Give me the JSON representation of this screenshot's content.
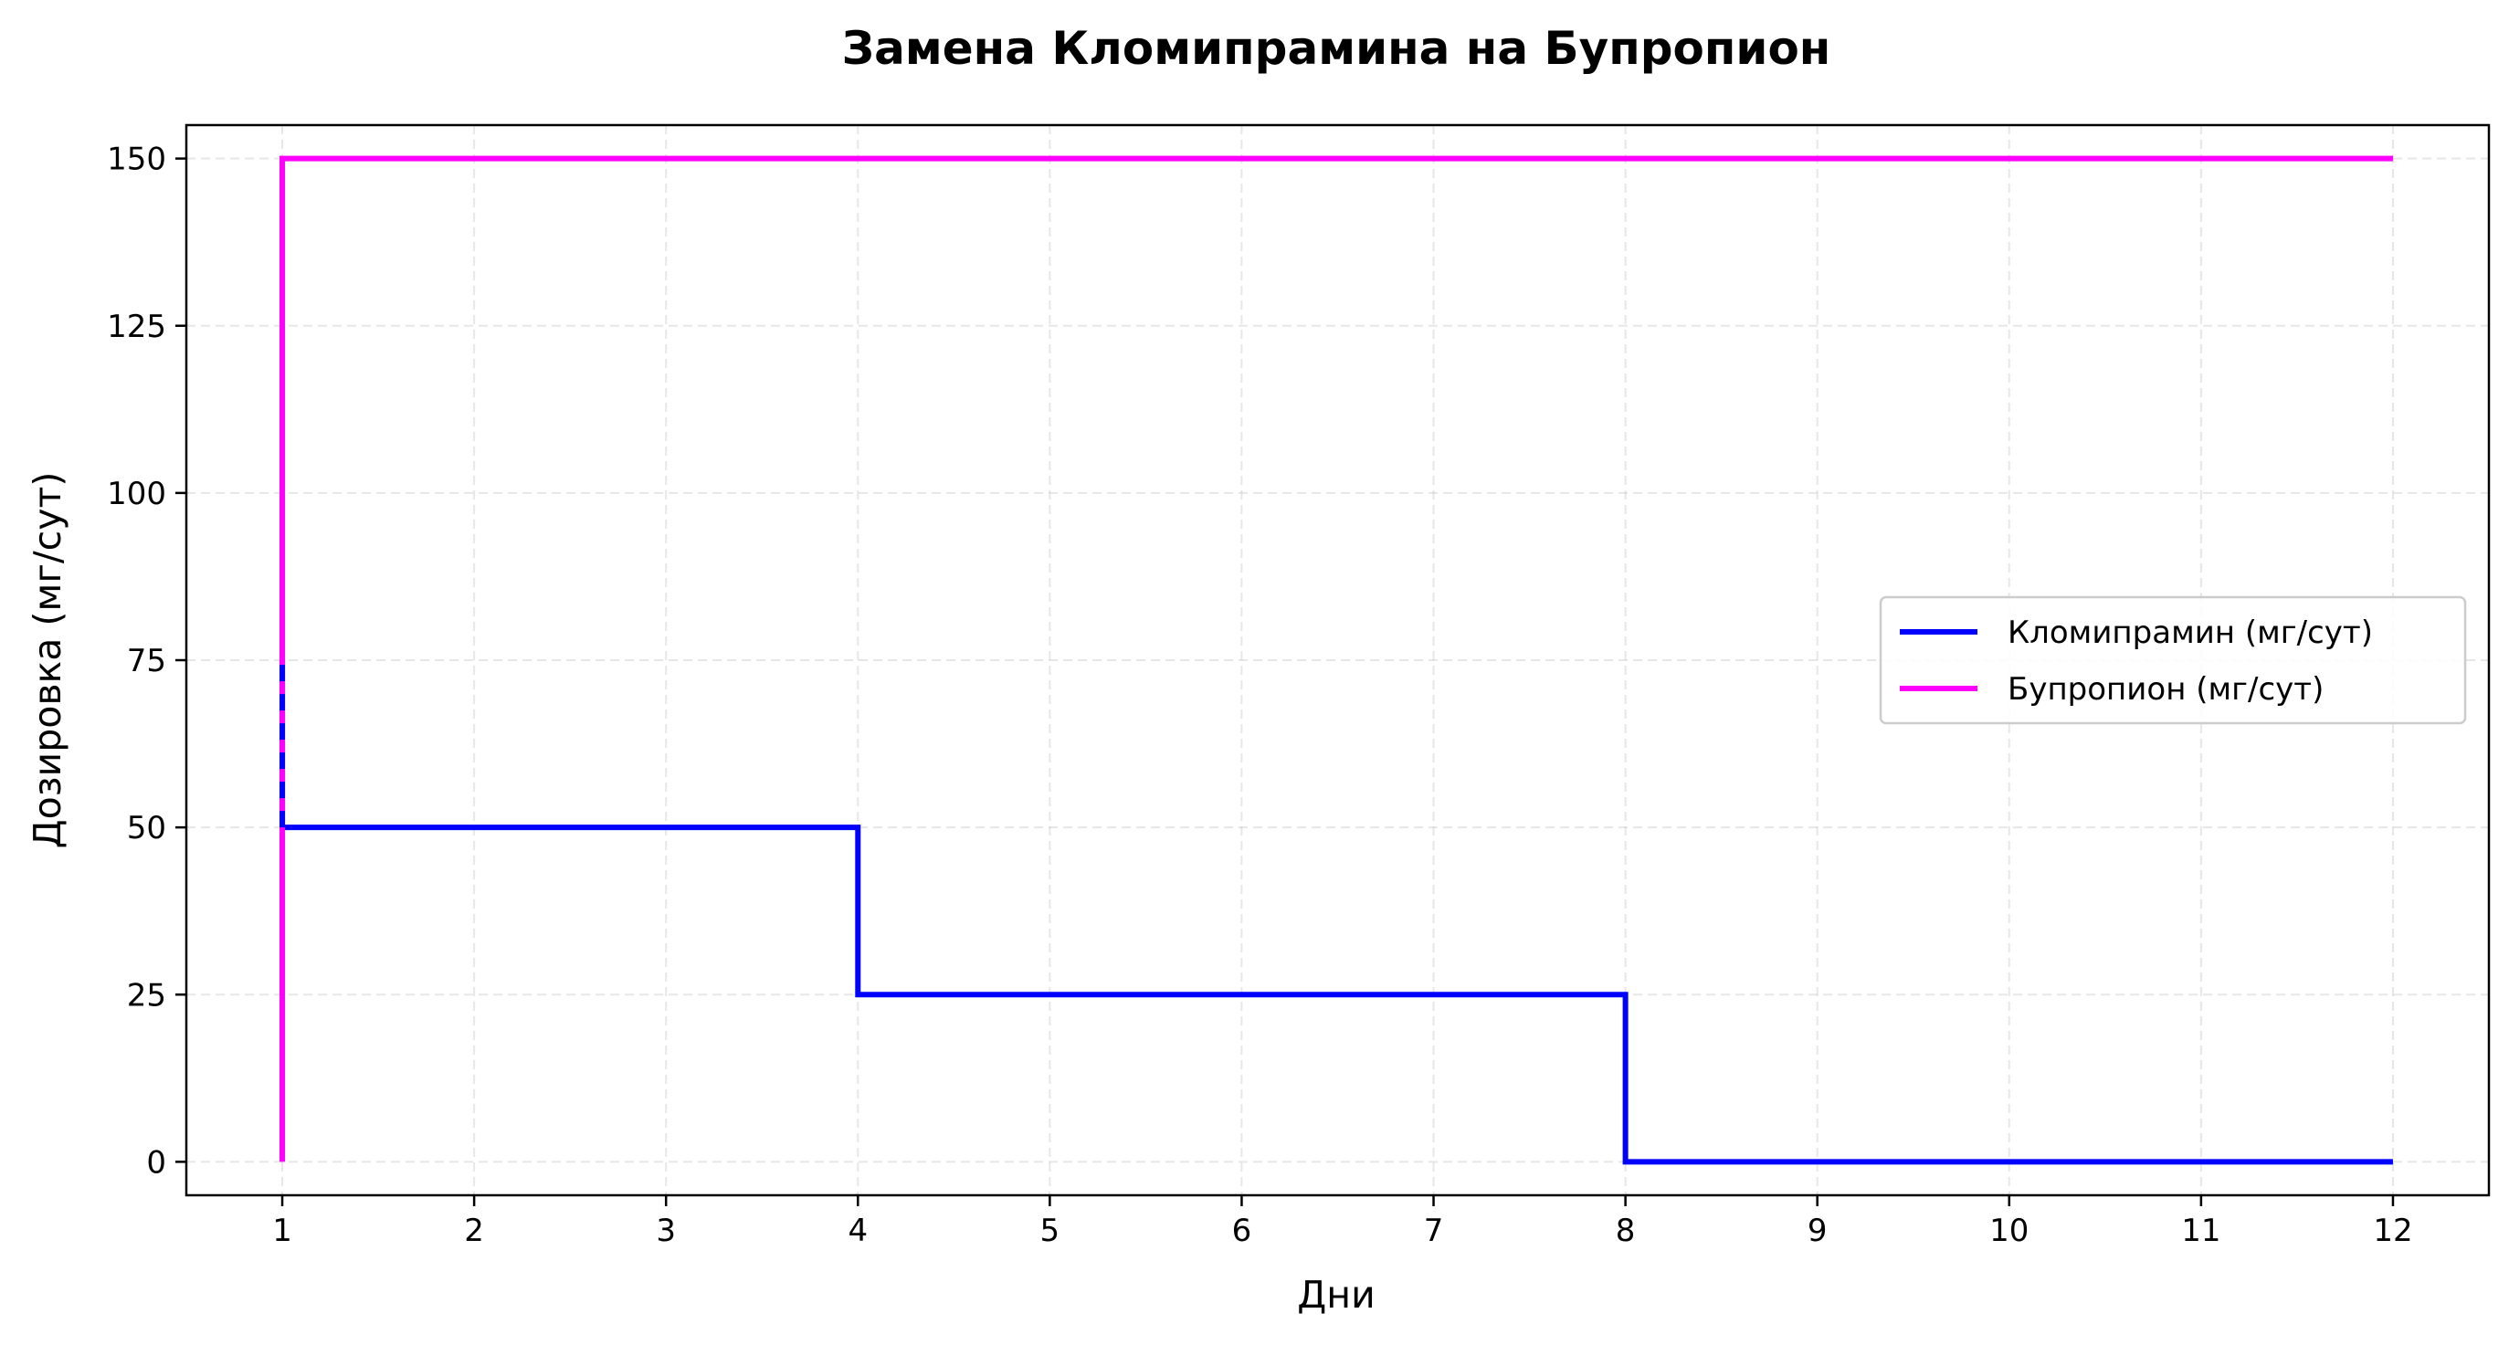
{
  "chart_data": {
    "type": "line",
    "title": "Замена Кломипрамина на Бупропион",
    "xlabel": "Дни",
    "ylabel": "Дозировка (мг/сут)",
    "xlim": [
      0.5,
      12.5
    ],
    "ylim": [
      -5,
      155
    ],
    "xticks": [
      1,
      2,
      3,
      4,
      5,
      6,
      7,
      8,
      9,
      10,
      11,
      12
    ],
    "yticks": [
      0,
      25,
      50,
      75,
      100,
      125,
      150
    ],
    "grid": true,
    "legend_position": "center-right",
    "series": [
      {
        "name": "Кломипрамин (мг/сут)",
        "color": "#0000ff",
        "line_style": "solid",
        "x": [
          1,
          1,
          4,
          4,
          8,
          8,
          12
        ],
        "y": [
          75,
          50,
          50,
          25,
          25,
          0,
          0
        ]
      },
      {
        "name": "Бупропион (мг/сут)",
        "color": "#ff00ff",
        "line_style": "solid",
        "x": [
          1,
          1,
          12
        ],
        "y": [
          0,
          150,
          150
        ]
      }
    ]
  }
}
